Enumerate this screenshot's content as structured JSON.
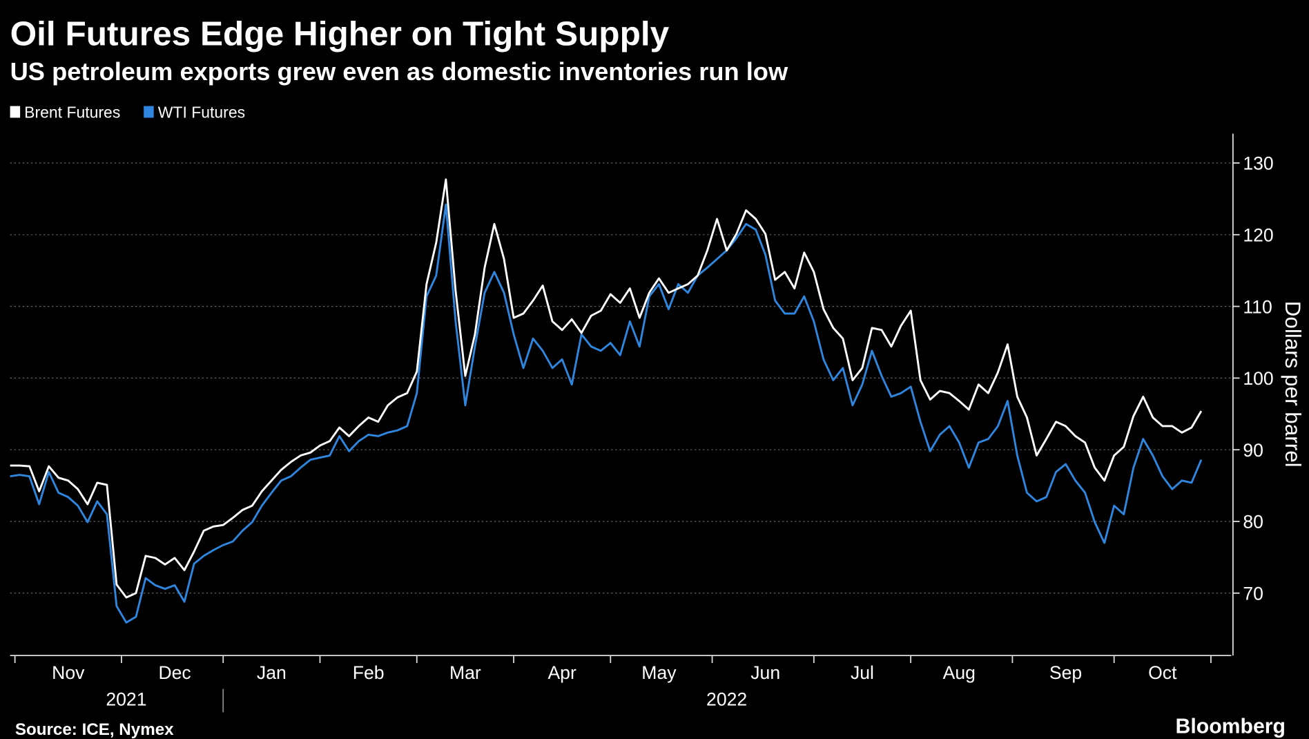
{
  "chart_data": {
    "type": "line",
    "title": "Oil Futures Edge Higher on Tight Supply",
    "subtitle": "US petroleum exports grew even as domestic inventories run low",
    "y_label": "Dollars per barrel",
    "source": "Source: ICE, Nymex",
    "credit": "Bloomberg",
    "categories": [
      null,
      null,
      null,
      null,
      null,
      null,
      "Nov",
      null,
      null,
      null,
      null,
      null,
      null,
      null,
      null,
      null,
      null,
      "Dec",
      null,
      null,
      null,
      null,
      null,
      null,
      null,
      null,
      null,
      "Jan",
      null,
      null,
      null,
      null,
      null,
      null,
      null,
      null,
      null,
      "Feb",
      null,
      null,
      null,
      null,
      null,
      null,
      null,
      null,
      null,
      "Mar",
      null,
      null,
      null,
      null,
      null,
      null,
      null,
      null,
      null,
      "Apr",
      null,
      null,
      null,
      null,
      null,
      null,
      null,
      null,
      null,
      "May",
      null,
      null,
      null,
      null,
      null,
      null,
      null,
      null,
      null,
      null,
      "Jun",
      null,
      null,
      null,
      null,
      null,
      null,
      null,
      null,
      null,
      "Jul",
      null,
      null,
      null,
      null,
      null,
      null,
      null,
      null,
      null,
      "Aug",
      null,
      null,
      null,
      null,
      null,
      null,
      null,
      null,
      null,
      null,
      "Sep",
      null,
      null,
      null,
      null,
      null,
      null,
      null,
      null,
      null,
      "Oct",
      null,
      null,
      null,
      null
    ],
    "year_labels": [
      null,
      null,
      null,
      null,
      null,
      null,
      null,
      null,
      null,
      null,
      null,
      null,
      "2021",
      null,
      null,
      null,
      null,
      null,
      null,
      null,
      null,
      null,
      null,
      null,
      null,
      null,
      null,
      null,
      null,
      null,
      null,
      null,
      null,
      null,
      null,
      null,
      null,
      null,
      null,
      null,
      null,
      null,
      null,
      null,
      null,
      null,
      null,
      null,
      null,
      null,
      null,
      null,
      null,
      null,
      null,
      null,
      null,
      null,
      null,
      null,
      null,
      null,
      null,
      null,
      null,
      null,
      null,
      null,
      null,
      null,
      null,
      null,
      null,
      null,
      "2022",
      null,
      null,
      null,
      null,
      null,
      null,
      null,
      null,
      null,
      null,
      null,
      null,
      null,
      null,
      null,
      null,
      null,
      null,
      null,
      null,
      null,
      null,
      null,
      null,
      null,
      null,
      null,
      null,
      null,
      null,
      null,
      null,
      null,
      null,
      null,
      null,
      null,
      null,
      null,
      null,
      null,
      null,
      null,
      null,
      null,
      null,
      null,
      null,
      null
    ],
    "series": [
      {
        "name": "Brent Futures",
        "color": "#ffffff",
        "values": [
          87.8,
          87.8,
          87.7,
          84.2,
          87.7,
          86.1,
          85.7,
          84.5,
          82.4,
          85.4,
          85.1,
          71.2,
          69.4,
          70.0,
          75.2,
          74.9,
          74.0,
          74.9,
          73.2,
          75.8,
          78.7,
          79.3,
          79.5,
          80.5,
          81.6,
          82.2,
          84.2,
          85.7,
          87.2,
          88.3,
          89.2,
          89.6,
          90.6,
          91.2,
          93.1,
          91.9,
          93.3,
          94.5,
          93.9,
          96.2,
          97.3,
          97.9,
          100.9,
          113.1,
          118.9,
          127.7,
          112.2,
          100.3,
          106.1,
          115.4,
          121.5,
          116.6,
          108.4,
          109.0,
          110.8,
          112.9,
          107.9,
          106.7,
          108.2,
          106.3,
          108.7,
          109.4,
          111.7,
          110.5,
          112.5,
          108.4,
          111.9,
          113.9,
          111.9,
          112.5,
          113.1,
          114.3,
          117.8,
          122.2,
          117.8,
          120.1,
          123.4,
          122.2,
          120.1,
          113.7,
          114.8,
          112.5,
          117.5,
          114.8,
          109.6,
          107.0,
          105.5,
          99.7,
          101.4,
          107.0,
          106.7,
          104.4,
          107.3,
          109.4,
          99.7,
          97.0,
          98.2,
          97.9,
          96.8,
          95.6,
          99.1,
          97.9,
          100.8,
          104.7,
          97.4,
          94.5,
          89.2,
          91.5,
          93.9,
          93.3,
          91.9,
          91.0,
          87.5,
          85.7,
          89.2,
          90.4,
          94.7,
          97.4,
          94.5,
          93.3,
          93.3,
          92.4,
          93.1,
          95.4
        ]
      },
      {
        "name": "WTI Futures",
        "color": "#2f86de",
        "values": [
          86.3,
          86.5,
          86.3,
          82.4,
          86.9,
          84.0,
          83.4,
          82.2,
          79.9,
          82.8,
          81.0,
          68.2,
          65.9,
          66.7,
          72.1,
          71.1,
          70.6,
          71.1,
          68.8,
          74.1,
          75.2,
          76.0,
          76.7,
          77.2,
          78.7,
          79.9,
          82.2,
          84.0,
          85.7,
          86.3,
          87.5,
          88.6,
          88.9,
          89.2,
          91.9,
          89.8,
          91.2,
          92.1,
          91.9,
          92.4,
          92.7,
          93.3,
          97.9,
          111.4,
          114.3,
          124.2,
          107.9,
          96.2,
          104.4,
          111.9,
          114.8,
          111.9,
          106.1,
          101.4,
          105.5,
          103.8,
          101.4,
          102.6,
          99.1,
          106.1,
          104.4,
          103.8,
          104.9,
          103.2,
          107.9,
          104.4,
          111.4,
          113.1,
          109.6,
          113.1,
          111.9,
          114.3,
          115.4,
          116.6,
          117.8,
          119.5,
          121.5,
          120.7,
          117.2,
          110.8,
          109.0,
          109.0,
          111.4,
          107.9,
          102.6,
          99.7,
          101.4,
          96.2,
          99.1,
          103.8,
          100.3,
          97.4,
          97.9,
          98.8,
          93.9,
          89.8,
          92.1,
          93.3,
          91.0,
          87.5,
          91.0,
          91.5,
          93.3,
          96.8,
          89.2,
          84.0,
          82.8,
          83.4,
          86.9,
          88.0,
          85.7,
          84.0,
          79.9,
          77.0,
          82.2,
          81.0,
          87.5,
          91.5,
          89.2,
          86.3,
          84.5,
          85.7,
          85.4,
          88.6
        ]
      }
    ],
    "ylim": [
      61.3,
      134.1
    ],
    "yticks": [
      70,
      80,
      90,
      100,
      110,
      120,
      130
    ],
    "grid": true,
    "legend": "top-left"
  }
}
